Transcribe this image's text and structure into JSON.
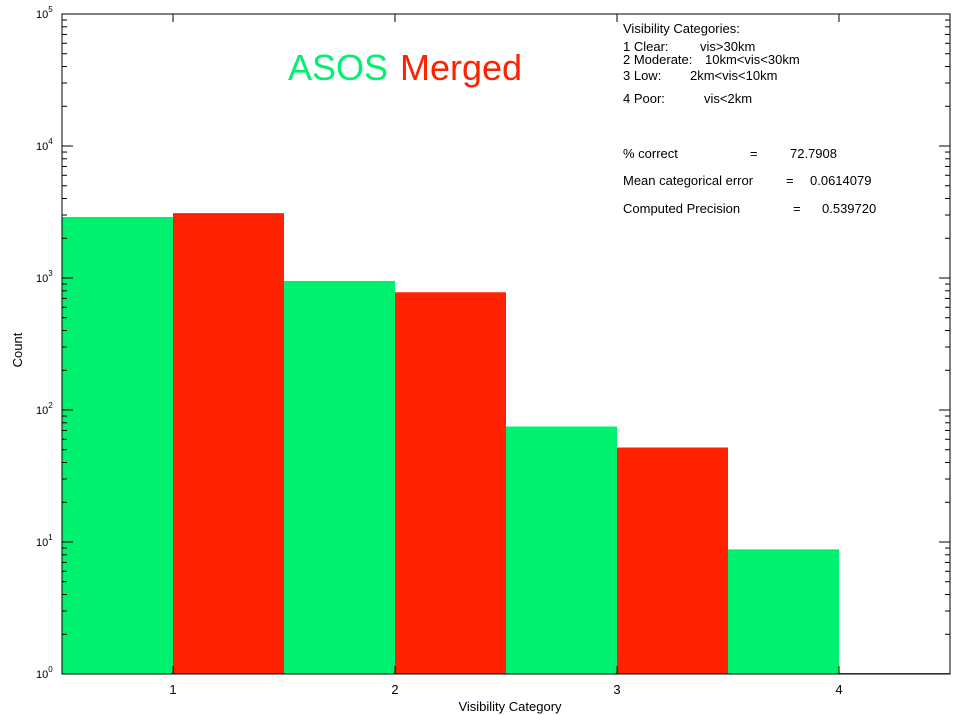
{
  "chart_data": {
    "type": "bar",
    "title": "",
    "xlabel": "Visibility Category",
    "ylabel": "Count",
    "yscale": "log",
    "ylim": [
      1,
      100000
    ],
    "xlim": [
      0.5,
      4.5
    ],
    "grid": false,
    "legend_position": "top-left",
    "categories": [
      "1",
      "2",
      "3",
      "4"
    ],
    "y_tick_labels": [
      {
        "base": "10",
        "exp": "0"
      },
      {
        "base": "10",
        "exp": "1"
      },
      {
        "base": "10",
        "exp": "2"
      },
      {
        "base": "10",
        "exp": "3"
      },
      {
        "base": "10",
        "exp": "4"
      },
      {
        "base": "10",
        "exp": "5"
      }
    ],
    "series": [
      {
        "name": "ASOS",
        "color": "#00f070",
        "values": [
          2900,
          950,
          75,
          8.8
        ]
      },
      {
        "name": "Merged",
        "color": "#ff2200",
        "values": [
          3100,
          780,
          52,
          1
        ]
      }
    ],
    "annotations": {
      "categories_title": "Visibility Categories:",
      "category_lines": [
        {
          "label": "1 Clear:",
          "range": "vis>30km"
        },
        {
          "label": "2 Moderate:",
          "range": "10km<vis<30km"
        },
        {
          "label": "3 Low:",
          "range": "2km<vis<10km"
        },
        {
          "label": "4 Poor:",
          "range": "vis<2km"
        }
      ],
      "stats": [
        {
          "label": "% correct",
          "eq": "=",
          "value": "72.7908"
        },
        {
          "label": "Mean categorical error",
          "eq": "=",
          "value": "0.0614079"
        },
        {
          "label": "Computed Precision",
          "eq": "=",
          "value": "0.539720"
        }
      ]
    }
  }
}
